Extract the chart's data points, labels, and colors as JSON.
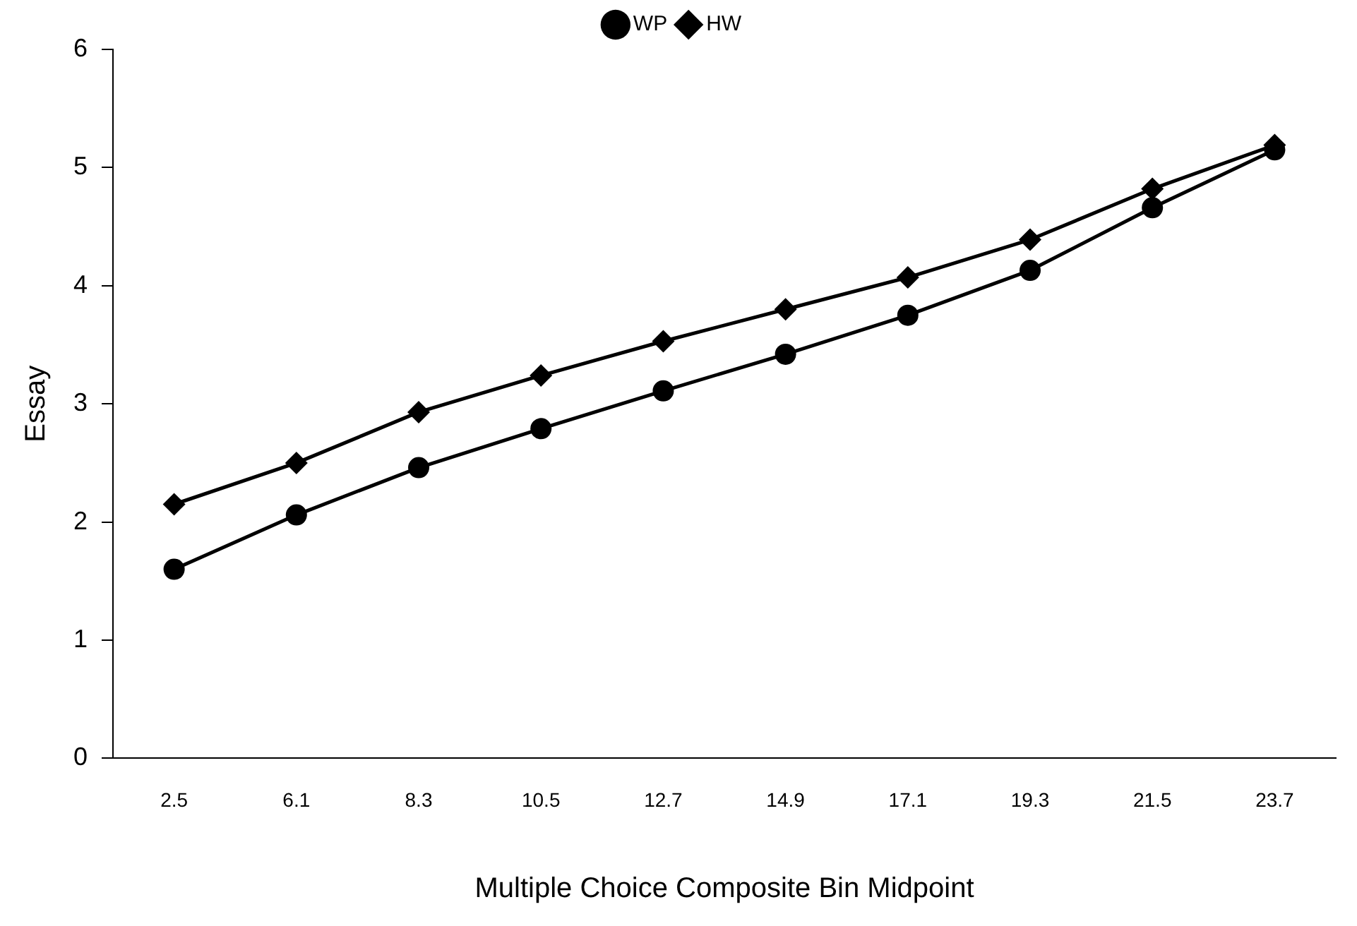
{
  "chart_data": {
    "type": "line",
    "xlabel": "Multiple Choice Composite Bin Midpoint",
    "ylabel": "Essay",
    "categories": [
      "2.5",
      "6.1",
      "8.3",
      "10.5",
      "12.7",
      "14.9",
      "17.1",
      "19.3",
      "21.5",
      "23.7"
    ],
    "series": [
      {
        "name": "WP",
        "color": "#000000",
        "marker": "circle",
        "values": [
          1.6,
          2.06,
          2.46,
          2.79,
          3.11,
          3.42,
          3.75,
          4.13,
          4.66,
          5.15
        ]
      },
      {
        "name": "HW",
        "color": "#000000",
        "marker": "diamond",
        "values": [
          2.15,
          2.5,
          2.93,
          3.24,
          3.53,
          3.8,
          4.07,
          4.39,
          4.82,
          5.19
        ]
      }
    ],
    "ylim": [
      0,
      6
    ],
    "yticks": [
      0,
      1,
      2,
      3,
      4,
      5,
      6
    ],
    "grid": false,
    "legend": "top"
  }
}
